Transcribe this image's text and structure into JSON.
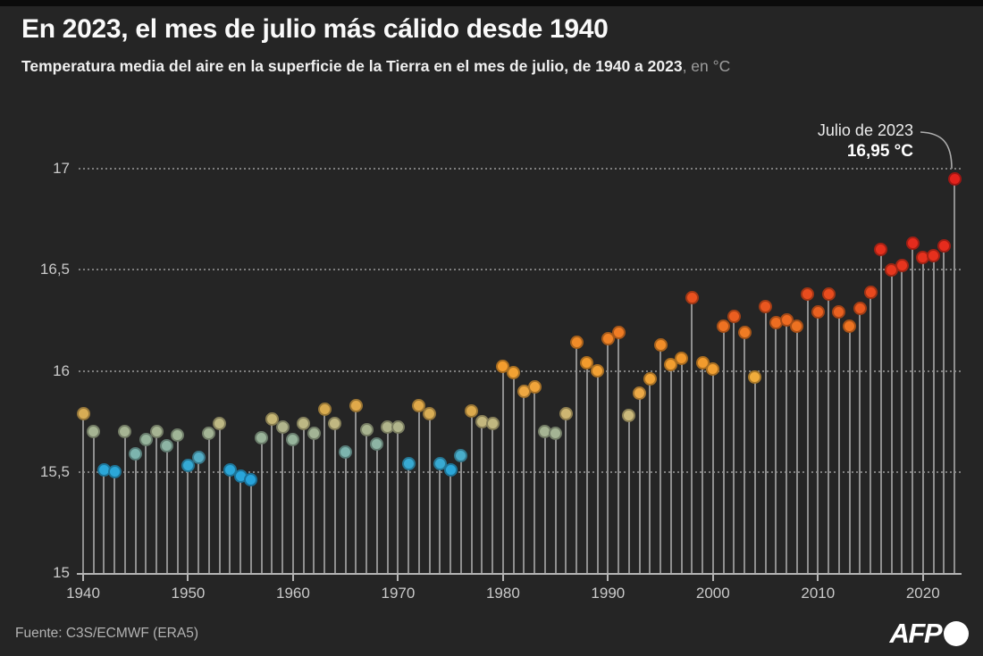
{
  "header": {
    "title": "En 2023, el mes de julio más cálido desde 1940",
    "subtitle_bold": "Temperatura media del aire en la superficie de la Tierra en el mes de julio, de 1940 a 2023",
    "subtitle_unit": ", en °C"
  },
  "annotation": {
    "label": "Julio de 2023",
    "value": "16,95 °C"
  },
  "footer": {
    "source": "Fuente: C3S/ECMWF (ERA5)",
    "logo_text": "AFP"
  },
  "chart_data": {
    "type": "lollipop",
    "title": "Temperatura media del aire en la superficie de la Tierra en el mes de julio, de 1940 a 2023, en °C",
    "xlabel": "",
    "ylabel": "°C",
    "ylim": [
      15,
      17.05
    ],
    "xlim": [
      1940,
      2023
    ],
    "grid": "horizontal-dotted",
    "legend": "none",
    "y_ticks": [
      {
        "value": 17,
        "label": "17",
        "grid": true
      },
      {
        "value": 16.5,
        "label": "16,5",
        "grid": true
      },
      {
        "value": 16,
        "label": "16",
        "grid": true
      },
      {
        "value": 15.5,
        "label": "15,5",
        "grid": true
      },
      {
        "value": 15,
        "label": "15",
        "grid": false
      }
    ],
    "x_ticks": [
      {
        "year": 1940,
        "label": "1940"
      },
      {
        "year": 1950,
        "label": "1950"
      },
      {
        "year": 1960,
        "label": "1960"
      },
      {
        "year": 1970,
        "label": "1970"
      },
      {
        "year": 1980,
        "label": "1980"
      },
      {
        "year": 1990,
        "label": "1990"
      },
      {
        "year": 2000,
        "label": "2000"
      },
      {
        "year": 2010,
        "label": "2010"
      },
      {
        "year": 2020,
        "label": "2020"
      }
    ],
    "highlight": {
      "year": 2023,
      "value": 16.95,
      "label": "Julio de 2023",
      "value_label": "16,95 °C"
    },
    "points": [
      {
        "year": 1940,
        "value": 15.79,
        "color": "#d8ad55"
      },
      {
        "year": 1941,
        "value": 15.7,
        "color": "#a6b493"
      },
      {
        "year": 1942,
        "value": 15.51,
        "color": "#2ba7d9"
      },
      {
        "year": 1943,
        "value": 15.5,
        "color": "#2ba7d9"
      },
      {
        "year": 1944,
        "value": 15.7,
        "color": "#a6b493"
      },
      {
        "year": 1945,
        "value": 15.59,
        "color": "#7db4ae"
      },
      {
        "year": 1946,
        "value": 15.66,
        "color": "#97b49c"
      },
      {
        "year": 1947,
        "value": 15.7,
        "color": "#a6b493"
      },
      {
        "year": 1948,
        "value": 15.63,
        "color": "#8db4a4"
      },
      {
        "year": 1949,
        "value": 15.68,
        "color": "#a0b497"
      },
      {
        "year": 1950,
        "value": 15.53,
        "color": "#35a9d4"
      },
      {
        "year": 1951,
        "value": 15.57,
        "color": "#55aec6"
      },
      {
        "year": 1952,
        "value": 15.69,
        "color": "#a3b495"
      },
      {
        "year": 1953,
        "value": 15.74,
        "color": "#bdb884"
      },
      {
        "year": 1954,
        "value": 15.51,
        "color": "#2ba7d9"
      },
      {
        "year": 1955,
        "value": 15.48,
        "color": "#29a5da"
      },
      {
        "year": 1956,
        "value": 15.46,
        "color": "#27a3db"
      },
      {
        "year": 1957,
        "value": 15.67,
        "color": "#9ab49a"
      },
      {
        "year": 1958,
        "value": 15.76,
        "color": "#c7b876"
      },
      {
        "year": 1959,
        "value": 15.72,
        "color": "#b1b58c"
      },
      {
        "year": 1960,
        "value": 15.66,
        "color": "#97b49c"
      },
      {
        "year": 1961,
        "value": 15.74,
        "color": "#bdb884"
      },
      {
        "year": 1962,
        "value": 15.69,
        "color": "#a3b495"
      },
      {
        "year": 1963,
        "value": 15.81,
        "color": "#d9ab4f"
      },
      {
        "year": 1964,
        "value": 15.74,
        "color": "#c1b882"
      },
      {
        "year": 1965,
        "value": 15.6,
        "color": "#7db4ae"
      },
      {
        "year": 1966,
        "value": 15.83,
        "color": "#e0a94a"
      },
      {
        "year": 1967,
        "value": 15.71,
        "color": "#a9b490"
      },
      {
        "year": 1968,
        "value": 15.64,
        "color": "#8db4a4"
      },
      {
        "year": 1969,
        "value": 15.72,
        "color": "#b1b58c"
      },
      {
        "year": 1970,
        "value": 15.72,
        "color": "#b1b58c"
      },
      {
        "year": 1971,
        "value": 15.54,
        "color": "#38a9d2"
      },
      {
        "year": 1972,
        "value": 15.83,
        "color": "#e0a94a"
      },
      {
        "year": 1973,
        "value": 15.79,
        "color": "#d8ad55"
      },
      {
        "year": 1974,
        "value": 15.54,
        "color": "#38a9d2"
      },
      {
        "year": 1975,
        "value": 15.51,
        "color": "#2ba7d9"
      },
      {
        "year": 1976,
        "value": 15.58,
        "color": "#49adca"
      },
      {
        "year": 1977,
        "value": 15.8,
        "color": "#dcaa4d"
      },
      {
        "year": 1978,
        "value": 15.75,
        "color": "#c3b77e"
      },
      {
        "year": 1979,
        "value": 15.74,
        "color": "#c0b780"
      },
      {
        "year": 1980,
        "value": 16.02,
        "color": "#f39d2e"
      },
      {
        "year": 1981,
        "value": 15.99,
        "color": "#f2a233"
      },
      {
        "year": 1982,
        "value": 15.9,
        "color": "#eea842"
      },
      {
        "year": 1983,
        "value": 15.92,
        "color": "#f0a43a"
      },
      {
        "year": 1984,
        "value": 15.7,
        "color": "#a6b493"
      },
      {
        "year": 1985,
        "value": 15.69,
        "color": "#a4b494"
      },
      {
        "year": 1986,
        "value": 15.79,
        "color": "#cdb672"
      },
      {
        "year": 1987,
        "value": 16.14,
        "color": "#f18b28"
      },
      {
        "year": 1988,
        "value": 16.04,
        "color": "#f29b2d"
      },
      {
        "year": 1989,
        "value": 16.0,
        "color": "#f2a134"
      },
      {
        "year": 1990,
        "value": 16.16,
        "color": "#f08326"
      },
      {
        "year": 1991,
        "value": 16.19,
        "color": "#ef7c24"
      },
      {
        "year": 1992,
        "value": 15.78,
        "color": "#cbba7c"
      },
      {
        "year": 1993,
        "value": 15.89,
        "color": "#eca947"
      },
      {
        "year": 1994,
        "value": 15.96,
        "color": "#f1a437"
      },
      {
        "year": 1995,
        "value": 16.13,
        "color": "#f18d29"
      },
      {
        "year": 1996,
        "value": 16.03,
        "color": "#f29e30"
      },
      {
        "year": 1997,
        "value": 16.06,
        "color": "#f1982c"
      },
      {
        "year": 1998,
        "value": 16.36,
        "color": "#e9511f"
      },
      {
        "year": 1999,
        "value": 16.04,
        "color": "#f29b2d"
      },
      {
        "year": 2000,
        "value": 16.01,
        "color": "#f2a032"
      },
      {
        "year": 2001,
        "value": 16.22,
        "color": "#ee7222"
      },
      {
        "year": 2002,
        "value": 16.27,
        "color": "#eb5e20"
      },
      {
        "year": 2003,
        "value": 16.19,
        "color": "#ef7c24"
      },
      {
        "year": 2004,
        "value": 15.97,
        "color": "#f0ac3b"
      },
      {
        "year": 2005,
        "value": 16.32,
        "color": "#e9561f"
      },
      {
        "year": 2006,
        "value": 16.24,
        "color": "#ed6d21"
      },
      {
        "year": 2007,
        "value": 16.25,
        "color": "#ed6a21"
      },
      {
        "year": 2008,
        "value": 16.22,
        "color": "#ee7222"
      },
      {
        "year": 2009,
        "value": 16.38,
        "color": "#e84c1e"
      },
      {
        "year": 2010,
        "value": 16.29,
        "color": "#ea6120"
      },
      {
        "year": 2011,
        "value": 16.38,
        "color": "#e84c1e"
      },
      {
        "year": 2012,
        "value": 16.29,
        "color": "#ea6120"
      },
      {
        "year": 2013,
        "value": 16.22,
        "color": "#ee7422"
      },
      {
        "year": 2014,
        "value": 16.31,
        "color": "#e9581f"
      },
      {
        "year": 2015,
        "value": 16.39,
        "color": "#e8491e"
      },
      {
        "year": 2016,
        "value": 16.6,
        "color": "#e6301d"
      },
      {
        "year": 2017,
        "value": 16.5,
        "color": "#e7371e"
      },
      {
        "year": 2018,
        "value": 16.52,
        "color": "#e7351e"
      },
      {
        "year": 2019,
        "value": 16.63,
        "color": "#e62b1d"
      },
      {
        "year": 2020,
        "value": 16.56,
        "color": "#e6311d"
      },
      {
        "year": 2021,
        "value": 16.57,
        "color": "#e6301d"
      },
      {
        "year": 2022,
        "value": 16.62,
        "color": "#e62c1d"
      },
      {
        "year": 2023,
        "value": 16.95,
        "color": "#e3221c"
      }
    ]
  }
}
